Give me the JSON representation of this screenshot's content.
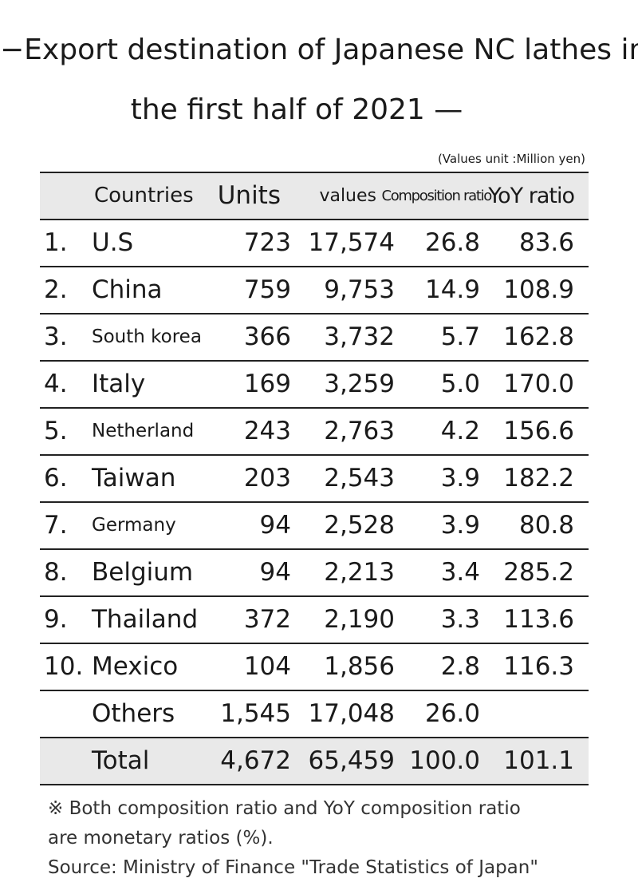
{
  "title": [
    "−Export destination of Japanese NC lathes in",
    "the first half of 2021 —"
  ],
  "unit_note": "(Values unit :Million yen)",
  "table": {
    "headers": {
      "country": "Countries",
      "units": "Units",
      "values": "values",
      "comp": "Composition ratio",
      "yoy": "YoY ratio"
    },
    "rows": [
      {
        "rank": "1.",
        "country": "U.S",
        "units": "723",
        "values": "17,574",
        "comp": "26.8",
        "yoy": "83.6"
      },
      {
        "rank": "2.",
        "country": "China",
        "units": "759",
        "values": "9,753",
        "comp": "14.9",
        "yoy": "108.9"
      },
      {
        "rank": "3.",
        "country": "South korea",
        "units": "366",
        "values": "3,732",
        "comp": "5.7",
        "yoy": "162.8"
      },
      {
        "rank": "4.",
        "country": "Italy",
        "units": "169",
        "values": "3,259",
        "comp": "5.0",
        "yoy": "170.0"
      },
      {
        "rank": "5.",
        "country": "Netherland",
        "units": "243",
        "values": "2,763",
        "comp": "4.2",
        "yoy": "156.6"
      },
      {
        "rank": "6.",
        "country": "Taiwan",
        "units": "203",
        "values": "2,543",
        "comp": "3.9",
        "yoy": "182.2"
      },
      {
        "rank": "7.",
        "country": "Germany",
        "units": "94",
        "values": "2,528",
        "comp": "3.9",
        "yoy": "80.8"
      },
      {
        "rank": "8.",
        "country": "Belgium",
        "units": "94",
        "values": "2,213",
        "comp": "3.4",
        "yoy": "285.2"
      },
      {
        "rank": "9.",
        "country": "Thailand",
        "units": "372",
        "values": "2,190",
        "comp": "3.3",
        "yoy": "113.6"
      },
      {
        "rank": "10.",
        "country": "Mexico",
        "units": "104",
        "values": "1,856",
        "comp": "2.8",
        "yoy": "116.3"
      },
      {
        "country": "Others",
        "units": "1,545",
        "values": "17,048",
        "comp": "26.0"
      },
      {
        "country": "Total",
        "units": "4,672",
        "values": "65,459",
        "comp": "100.0",
        "yoy": "101.1"
      }
    ]
  },
  "notes": [
    "※ Both composition ratio and YoY composition ratio",
    "are monetary ratios (%).",
    "Source: Ministry of Finance \"Trade Statistics of Japan\""
  ]
}
